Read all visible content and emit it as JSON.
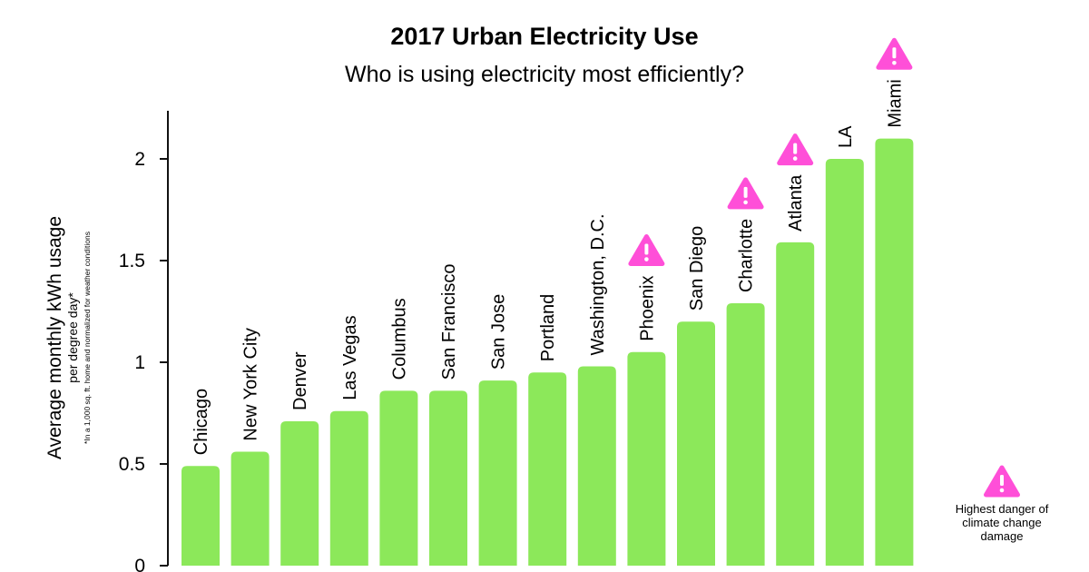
{
  "chart_data": {
    "type": "bar",
    "title": "2017 Urban Electricity Use",
    "subtitle": "Who is using electricity most efficiently?",
    "ylabel": "Average monthly kWh usage",
    "ylabel_sub": "per degree day*",
    "footnote": "*In a 1,000 sq. ft. home and normalized for weather conditions",
    "xlabel": "",
    "ylim": [
      0,
      2.25
    ],
    "yticks": [
      0,
      0.5,
      1,
      1.5,
      2
    ],
    "ytick_labels": [
      "0",
      "0.5",
      "1",
      "1.5",
      "2"
    ],
    "categories": [
      "Chicago",
      "New York City",
      "Denver",
      "Las Vegas",
      "Columbus",
      "San Francisco",
      "San Jose",
      "Portland",
      "Washington, D.C.",
      "Phoenix",
      "San Diego",
      "Charlotte",
      "Atlanta",
      "LA",
      "Miami"
    ],
    "values": [
      0.49,
      0.56,
      0.71,
      0.76,
      0.86,
      0.86,
      0.91,
      0.95,
      0.98,
      1.05,
      1.2,
      1.29,
      1.59,
      2.0,
      2.1
    ],
    "high_danger": [
      false,
      false,
      false,
      false,
      false,
      false,
      false,
      false,
      false,
      true,
      false,
      true,
      true,
      false,
      true
    ],
    "bar_color": "#8ce85a",
    "warning_color": "#ff4fd8",
    "legend": {
      "icon": "warning-icon",
      "lines": [
        "Highest danger of",
        "climate change",
        "damage"
      ]
    }
  }
}
